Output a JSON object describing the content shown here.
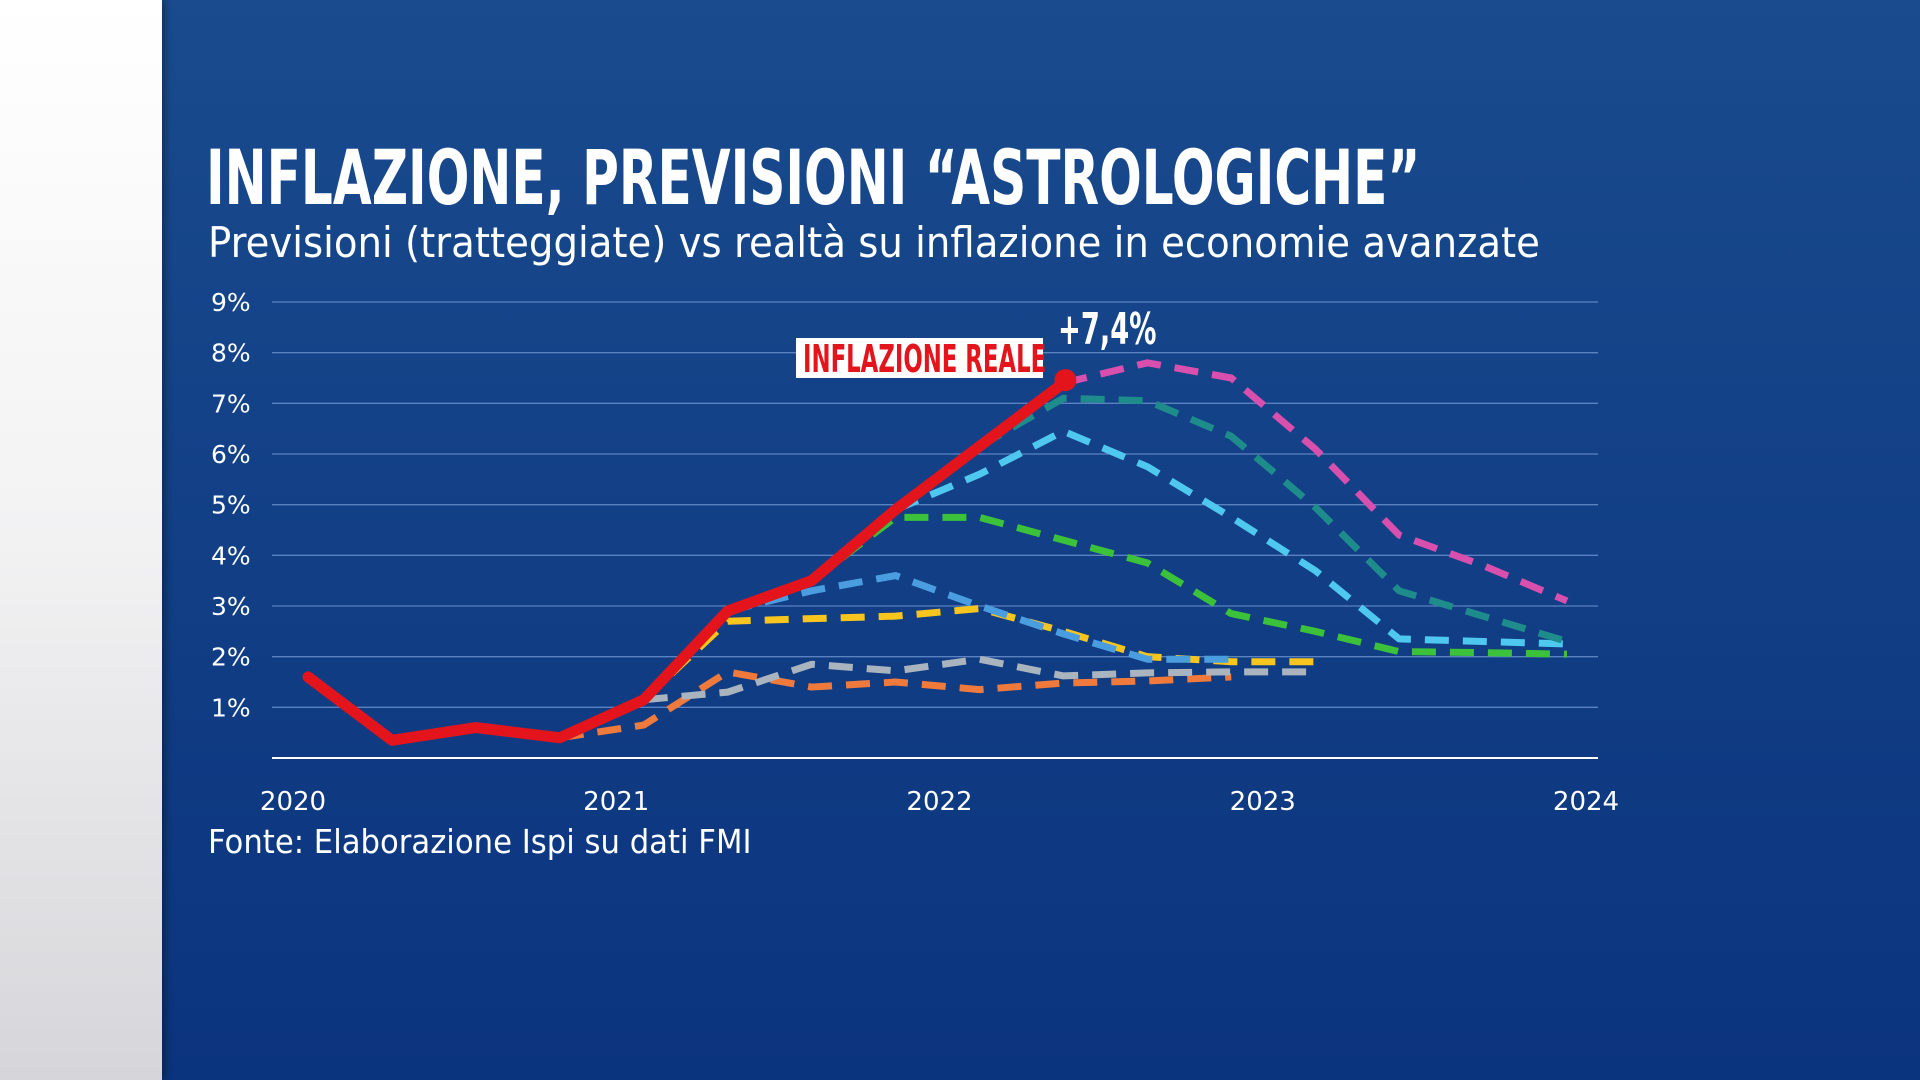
{
  "header": {
    "title": "INFLAZIONE, PREVISIONI “ASTROLOGICHE”",
    "subtitle": "Previsioni (tratteggiate) vs realtà su inflazione in economie avanzate"
  },
  "footer": {
    "source": "Fonte: Elaborazione Ispi su dati FMI"
  },
  "annotations": {
    "actual_label": "INFLAZIONE REALE",
    "peak_label": "+7,4%"
  },
  "chart_data": {
    "type": "line",
    "title": "INFLAZIONE, PREVISIONI “ASTROLOGICHE”",
    "xlabel": "",
    "ylabel": "",
    "x": [
      "2020 Q1",
      "2020 Q2",
      "2020 Q3",
      "2020 Q4",
      "2021 Q1",
      "2021 Q2",
      "2021 Q3",
      "2021 Q4",
      "2022 Q1",
      "2022 Q2",
      "2022 Q3",
      "2022 Q4",
      "2023 Q1",
      "2023 Q2",
      "2023 Q3",
      "2023 Q4"
    ],
    "xtick_labels": [
      "2020",
      "2021",
      "2022",
      "2023",
      "2024"
    ],
    "ytick_labels": [
      "1%",
      "2%",
      "3%",
      "4%",
      "5%",
      "6%",
      "7%",
      "8%",
      "9%"
    ],
    "ylim": [
      0,
      9
    ],
    "grid": true,
    "actual": {
      "color": "#e3141b",
      "style": "solid",
      "values": [
        1.6,
        0.35,
        0.6,
        0.4,
        1.15,
        2.9,
        3.5,
        4.9,
        6.15,
        7.4
      ]
    },
    "forecasts": [
      {
        "color": "#f07a3c",
        "start": 3,
        "values": [
          0.4,
          0.65,
          1.7,
          1.4,
          1.5,
          1.35,
          1.48,
          1.52,
          1.6
        ]
      },
      {
        "color": "#a9b4be",
        "start": 4,
        "values": [
          1.15,
          1.3,
          1.85,
          1.72,
          1.95,
          1.62,
          1.68,
          1.7,
          1.7
        ]
      },
      {
        "color": "#f7c51e",
        "start": 4,
        "values": [
          1.15,
          2.7,
          2.75,
          2.8,
          2.95,
          2.5,
          2.0,
          1.9,
          1.9
        ]
      },
      {
        "color": "#4a9ee0",
        "start": 5,
        "values": [
          2.9,
          3.3,
          3.6,
          3.0,
          2.45,
          1.95,
          1.95
        ]
      },
      {
        "color": "#3cc23a",
        "start": 6,
        "values": [
          3.5,
          4.75,
          4.75,
          4.3,
          3.85,
          2.85,
          2.5,
          2.1,
          2.08,
          2.05
        ]
      },
      {
        "color": "#4fc8f0",
        "start": 7,
        "values": [
          4.9,
          5.6,
          6.45,
          5.75,
          4.75,
          3.7,
          2.35,
          2.3,
          2.25
        ]
      },
      {
        "color": "#1f8c8c",
        "start": 8,
        "values": [
          6.15,
          7.1,
          7.05,
          6.35,
          4.95,
          3.3,
          2.8,
          2.3
        ]
      },
      {
        "color": "#d84fae",
        "start": 9,
        "values": [
          7.4,
          7.8,
          7.5,
          6.1,
          4.4,
          3.8,
          3.1
        ]
      }
    ]
  }
}
